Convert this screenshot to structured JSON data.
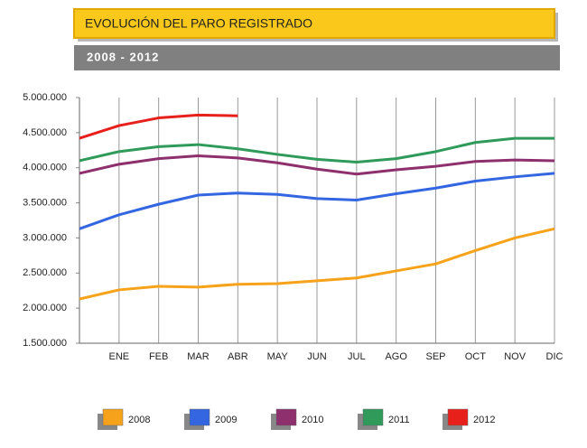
{
  "chart_data": {
    "type": "line",
    "title": "EVOLUCIÓN DEL PARO REGISTRADO",
    "subtitle": "2008 - 2012",
    "categories": [
      null,
      "ENE",
      "FEB",
      "MAR",
      "ABR",
      "MAY",
      "JUN",
      "JUL",
      "AGO",
      "SEP",
      "OCT",
      "NOV",
      "DIC"
    ],
    "series": [
      {
        "name": "2008",
        "color": "#f7a21b",
        "values": [
          2130000,
          2260000,
          2310000,
          2300000,
          2340000,
          2350000,
          2390000,
          2430000,
          2530000,
          2630000,
          2820000,
          3000000,
          3130000
        ]
      },
      {
        "name": "2009",
        "color": "#3366e0",
        "values": [
          3130000,
          3330000,
          3480000,
          3610000,
          3640000,
          3620000,
          3560000,
          3540000,
          3630000,
          3710000,
          3810000,
          3870000,
          3920000
        ]
      },
      {
        "name": "2010",
        "color": "#8e2f6e",
        "values": [
          3920000,
          4050000,
          4130000,
          4170000,
          4140000,
          4070000,
          3980000,
          3910000,
          3970000,
          4020000,
          4090000,
          4110000,
          4100000
        ]
      },
      {
        "name": "2011",
        "color": "#2f9a5a",
        "values": [
          4100000,
          4230000,
          4300000,
          4330000,
          4270000,
          4190000,
          4120000,
          4080000,
          4130000,
          4230000,
          4360000,
          4420000,
          4420000
        ]
      },
      {
        "name": "2012",
        "color": "#e8201c",
        "values": [
          4420000,
          4600000,
          4710000,
          4750000,
          4740000,
          null,
          null,
          null,
          null,
          null,
          null,
          null,
          null
        ]
      }
    ],
    "ylim": [
      1500000,
      5000000
    ],
    "yticks": [
      {
        "value": 1500000,
        "label": "1.500.000"
      },
      {
        "value": 2000000,
        "label": "2.000.000"
      },
      {
        "value": 2500000,
        "label": "2.500.000"
      },
      {
        "value": 3000000,
        "label": "3.000.000"
      },
      {
        "value": 3500000,
        "label": "3.500.000"
      },
      {
        "value": 4000000,
        "label": "4.000.000"
      },
      {
        "value": 4500000,
        "label": "4.500.000"
      },
      {
        "value": 5000000,
        "label": "5.000.000"
      }
    ],
    "grid": true,
    "legend": "bottom"
  }
}
